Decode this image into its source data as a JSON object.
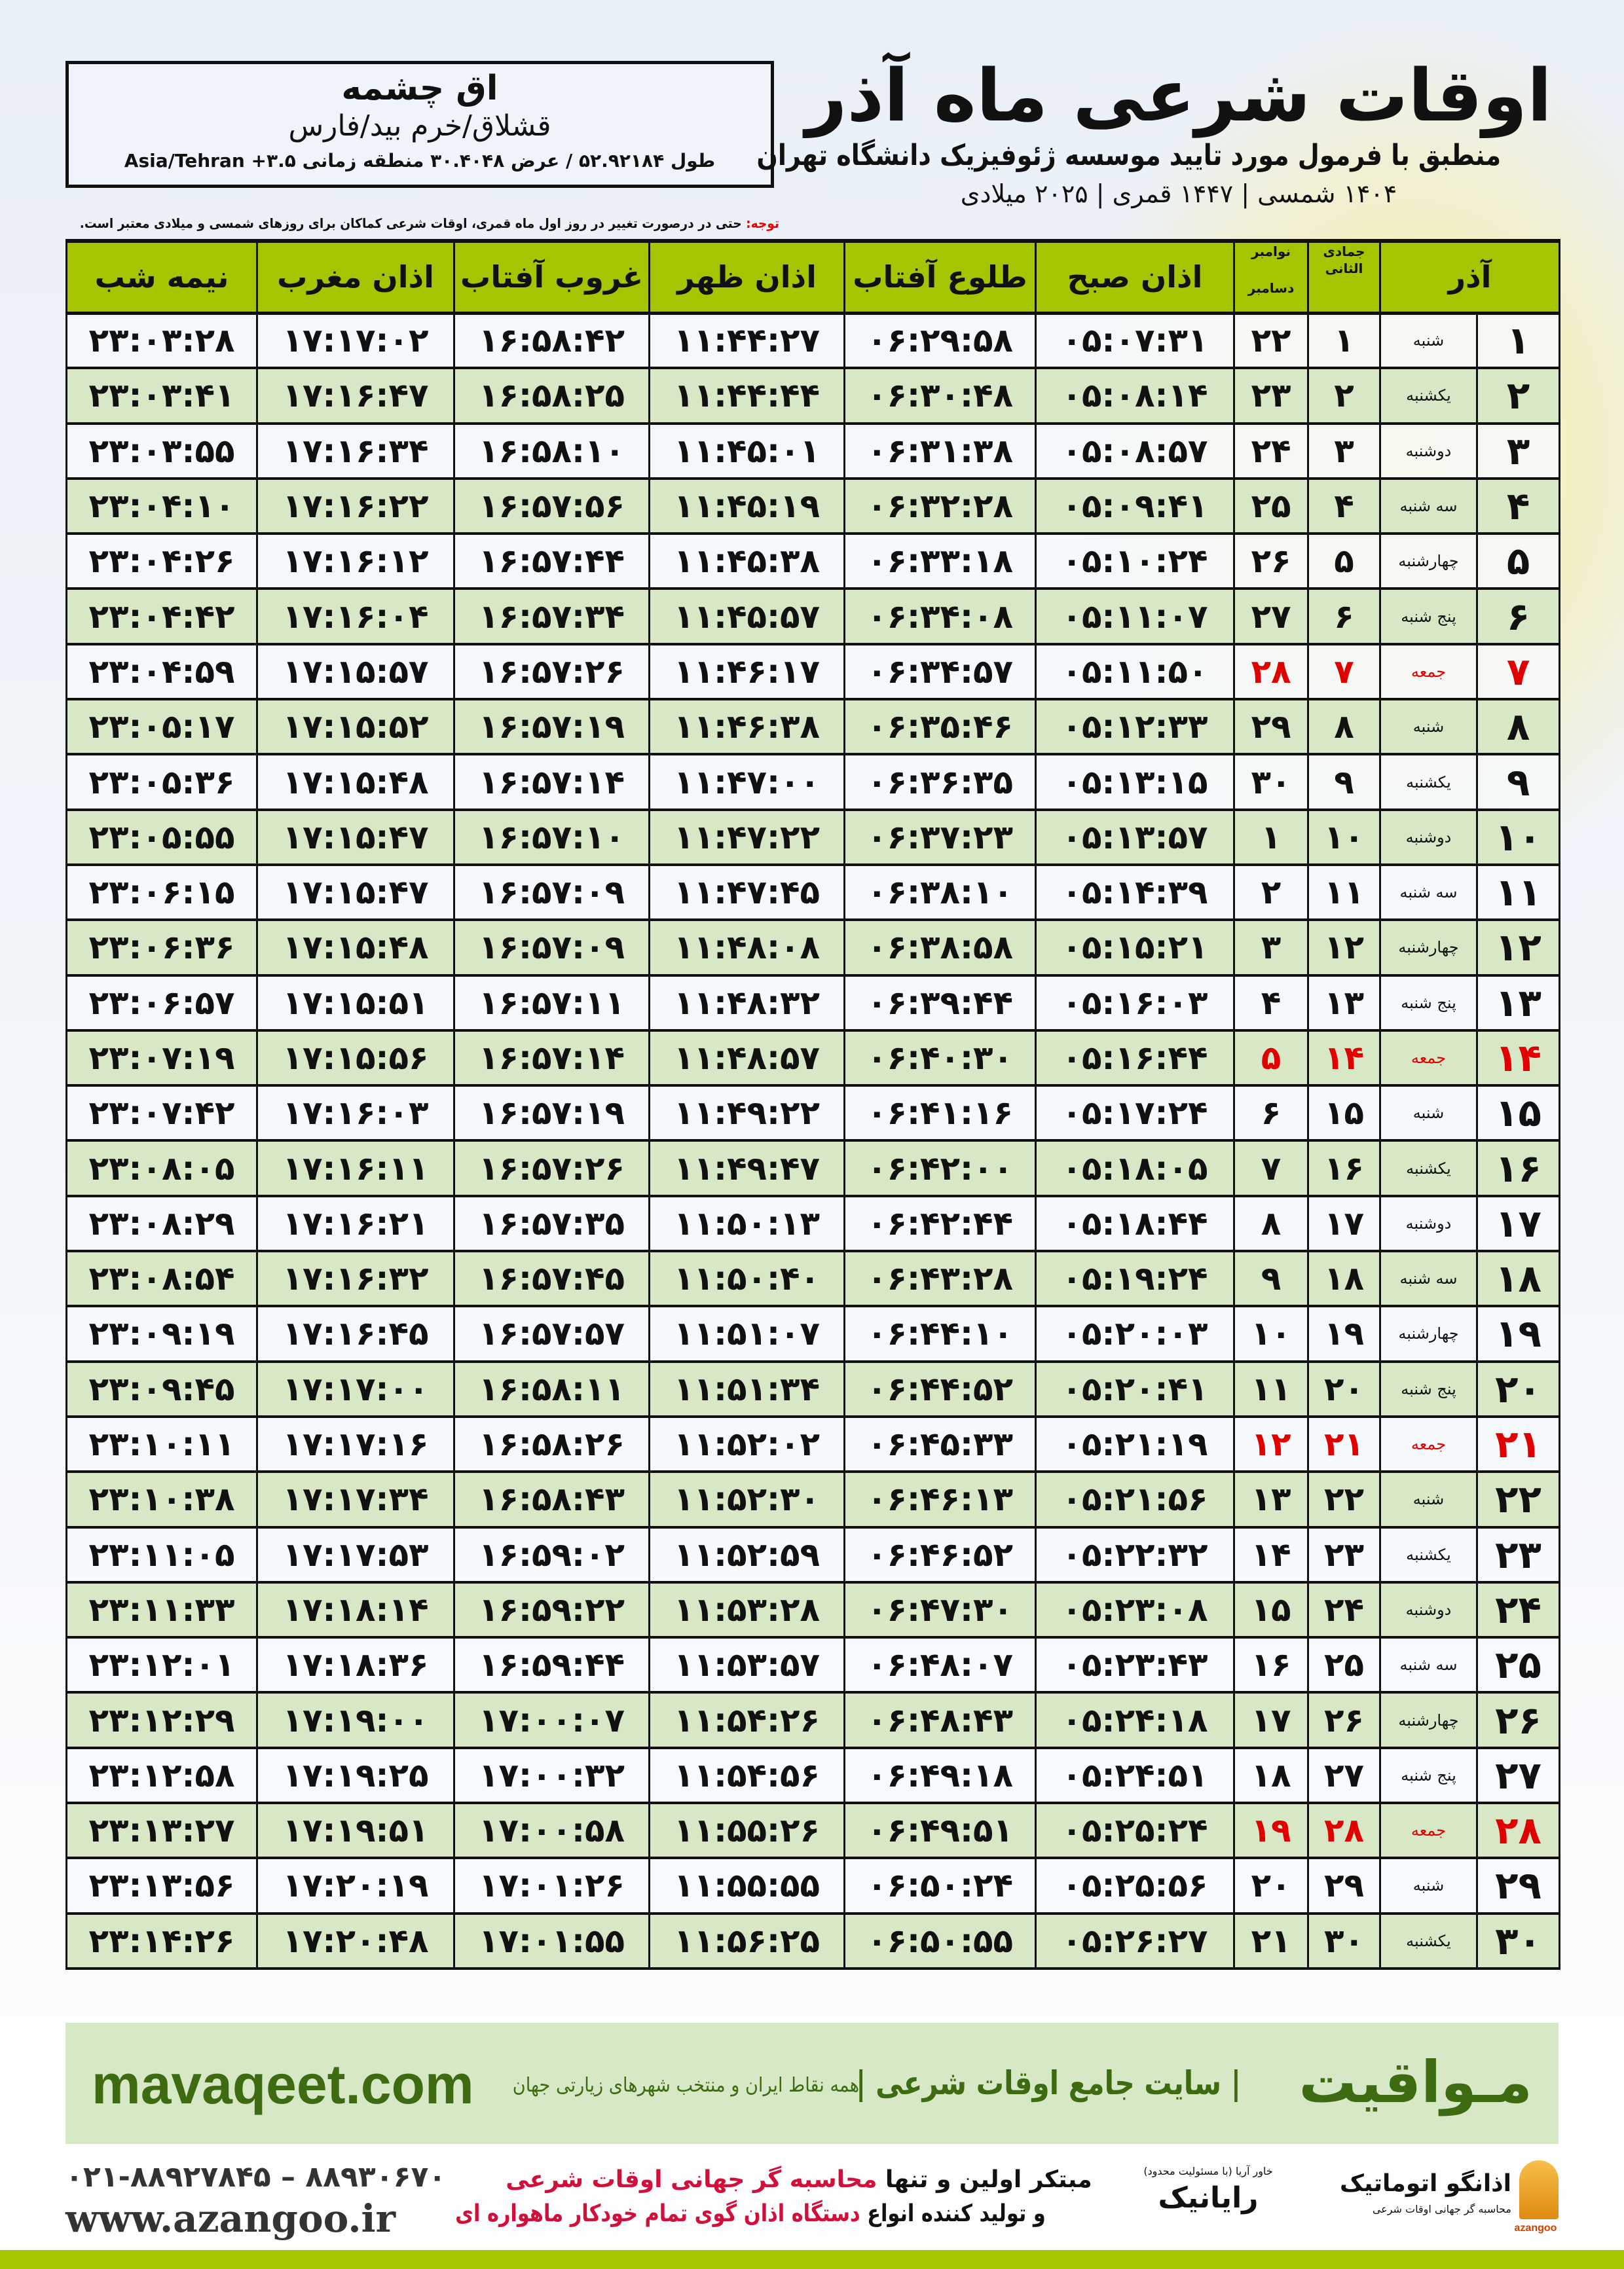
{
  "location": {
    "name": "اق چشمه",
    "region": "قشلاق/خرم بید/فارس",
    "coords": "طول ۵۲.۹۲۱۸۴ / عرض ۳۰.۴۰۴۸ منطقه زمانی Asia/Tehran +۳.۵"
  },
  "header": {
    "title": "اوقات شرعی ماه آذر",
    "subtitle": "منطبق با فرمول مورد تایید موسسه ژئوفیزیک دانشگاه تهران",
    "dates": "۱۴۰۴ شمسی | ۱۴۴۷ قمری | ۲۰۲۵ میلادی"
  },
  "note": {
    "label": "توجه:",
    "text": " حتی در درصورت تغییر در روز اول ماه قمری، اوقات شرعی کماکان برای روزهای شمسی و میلادی معتبر است."
  },
  "table": {
    "headers": {
      "month": "آذر",
      "hijri": "جمادی الثانی",
      "gregorian_top": "نوامبر",
      "gregorian_bottom": "دسامبر",
      "fajr": "اذان صبح",
      "sunrise": "طلوع آفتاب",
      "dhuhr": "اذان ظهر",
      "sunset": "غروب آفتاب",
      "maghrib": "اذان مغرب",
      "midnight": "نیمه شب"
    },
    "highlight_color": "#e00000",
    "rows": [
      [
        "۱",
        "شنبه",
        "۱",
        "۲۲",
        "۰۵:۰۷:۳۱",
        "۰۶:۲۹:۵۸",
        "۱۱:۴۴:۲۷",
        "۱۶:۵۸:۴۲",
        "۱۷:۱۷:۰۲",
        "۲۳:۰۳:۲۸"
      ],
      [
        "۲",
        "یکشنبه",
        "۲",
        "۲۳",
        "۰۵:۰۸:۱۴",
        "۰۶:۳۰:۴۸",
        "۱۱:۴۴:۴۴",
        "۱۶:۵۸:۲۵",
        "۱۷:۱۶:۴۷",
        "۲۳:۰۳:۴۱"
      ],
      [
        "۳",
        "دوشنبه",
        "۳",
        "۲۴",
        "۰۵:۰۸:۵۷",
        "۰۶:۳۱:۳۸",
        "۱۱:۴۵:۰۱",
        "۱۶:۵۸:۱۰",
        "۱۷:۱۶:۳۴",
        "۲۳:۰۳:۵۵"
      ],
      [
        "۴",
        "سه شنبه",
        "۴",
        "۲۵",
        "۰۵:۰۹:۴۱",
        "۰۶:۳۲:۲۸",
        "۱۱:۴۵:۱۹",
        "۱۶:۵۷:۵۶",
        "۱۷:۱۶:۲۲",
        "۲۳:۰۴:۱۰"
      ],
      [
        "۵",
        "چهارشنبه",
        "۵",
        "۲۶",
        "۰۵:۱۰:۲۴",
        "۰۶:۳۳:۱۸",
        "۱۱:۴۵:۳۸",
        "۱۶:۵۷:۴۴",
        "۱۷:۱۶:۱۲",
        "۲۳:۰۴:۲۶"
      ],
      [
        "۶",
        "پنج شنبه",
        "۶",
        "۲۷",
        "۰۵:۱۱:۰۷",
        "۰۶:۳۴:۰۸",
        "۱۱:۴۵:۵۷",
        "۱۶:۵۷:۳۴",
        "۱۷:۱۶:۰۴",
        "۲۳:۰۴:۴۲"
      ],
      [
        "۷",
        "جمعه",
        "۷",
        "۲۸",
        "۰۵:۱۱:۵۰",
        "۰۶:۳۴:۵۷",
        "۱۱:۴۶:۱۷",
        "۱۶:۵۷:۲۶",
        "۱۷:۱۵:۵۷",
        "۲۳:۰۴:۵۹"
      ],
      [
        "۸",
        "شنبه",
        "۸",
        "۲۹",
        "۰۵:۱۲:۳۳",
        "۰۶:۳۵:۴۶",
        "۱۱:۴۶:۳۸",
        "۱۶:۵۷:۱۹",
        "۱۷:۱۵:۵۲",
        "۲۳:۰۵:۱۷"
      ],
      [
        "۹",
        "یکشنبه",
        "۹",
        "۳۰",
        "۰۵:۱۳:۱۵",
        "۰۶:۳۶:۳۵",
        "۱۱:۴۷:۰۰",
        "۱۶:۵۷:۱۴",
        "۱۷:۱۵:۴۸",
        "۲۳:۰۵:۳۶"
      ],
      [
        "۱۰",
        "دوشنبه",
        "۱۰",
        "۱",
        "۰۵:۱۳:۵۷",
        "۰۶:۳۷:۲۳",
        "۱۱:۴۷:۲۲",
        "۱۶:۵۷:۱۰",
        "۱۷:۱۵:۴۷",
        "۲۳:۰۵:۵۵"
      ],
      [
        "۱۱",
        "سه شنبه",
        "۱۱",
        "۲",
        "۰۵:۱۴:۳۹",
        "۰۶:۳۸:۱۰",
        "۱۱:۴۷:۴۵",
        "۱۶:۵۷:۰۹",
        "۱۷:۱۵:۴۷",
        "۲۳:۰۶:۱۵"
      ],
      [
        "۱۲",
        "چهارشنبه",
        "۱۲",
        "۳",
        "۰۵:۱۵:۲۱",
        "۰۶:۳۸:۵۸",
        "۱۱:۴۸:۰۸",
        "۱۶:۵۷:۰۹",
        "۱۷:۱۵:۴۸",
        "۲۳:۰۶:۳۶"
      ],
      [
        "۱۳",
        "پنج شنبه",
        "۱۳",
        "۴",
        "۰۵:۱۶:۰۳",
        "۰۶:۳۹:۴۴",
        "۱۱:۴۸:۳۲",
        "۱۶:۵۷:۱۱",
        "۱۷:۱۵:۵۱",
        "۲۳:۰۶:۵۷"
      ],
      [
        "۱۴",
        "جمعه",
        "۱۴",
        "۵",
        "۰۵:۱۶:۴۴",
        "۰۶:۴۰:۳۰",
        "۱۱:۴۸:۵۷",
        "۱۶:۵۷:۱۴",
        "۱۷:۱۵:۵۶",
        "۲۳:۰۷:۱۹"
      ],
      [
        "۱۵",
        "شنبه",
        "۱۵",
        "۶",
        "۰۵:۱۷:۲۴",
        "۰۶:۴۱:۱۶",
        "۱۱:۴۹:۲۲",
        "۱۶:۵۷:۱۹",
        "۱۷:۱۶:۰۳",
        "۲۳:۰۷:۴۲"
      ],
      [
        "۱۶",
        "یکشنبه",
        "۱۶",
        "۷",
        "۰۵:۱۸:۰۵",
        "۰۶:۴۲:۰۰",
        "۱۱:۴۹:۴۷",
        "۱۶:۵۷:۲۶",
        "۱۷:۱۶:۱۱",
        "۲۳:۰۸:۰۵"
      ],
      [
        "۱۷",
        "دوشنبه",
        "۱۷",
        "۸",
        "۰۵:۱۸:۴۴",
        "۰۶:۴۲:۴۴",
        "۱۱:۵۰:۱۳",
        "۱۶:۵۷:۳۵",
        "۱۷:۱۶:۲۱",
        "۲۳:۰۸:۲۹"
      ],
      [
        "۱۸",
        "سه شنبه",
        "۱۸",
        "۹",
        "۰۵:۱۹:۲۴",
        "۰۶:۴۳:۲۸",
        "۱۱:۵۰:۴۰",
        "۱۶:۵۷:۴۵",
        "۱۷:۱۶:۳۲",
        "۲۳:۰۸:۵۴"
      ],
      [
        "۱۹",
        "چهارشنبه",
        "۱۹",
        "۱۰",
        "۰۵:۲۰:۰۳",
        "۰۶:۴۴:۱۰",
        "۱۱:۵۱:۰۷",
        "۱۶:۵۷:۵۷",
        "۱۷:۱۶:۴۵",
        "۲۳:۰۹:۱۹"
      ],
      [
        "۲۰",
        "پنج شنبه",
        "۲۰",
        "۱۱",
        "۰۵:۲۰:۴۱",
        "۰۶:۴۴:۵۲",
        "۱۱:۵۱:۳۴",
        "۱۶:۵۸:۱۱",
        "۱۷:۱۷:۰۰",
        "۲۳:۰۹:۴۵"
      ],
      [
        "۲۱",
        "جمعه",
        "۲۱",
        "۱۲",
        "۰۵:۲۱:۱۹",
        "۰۶:۴۵:۳۳",
        "۱۱:۵۲:۰۲",
        "۱۶:۵۸:۲۶",
        "۱۷:۱۷:۱۶",
        "۲۳:۱۰:۱۱"
      ],
      [
        "۲۲",
        "شنبه",
        "۲۲",
        "۱۳",
        "۰۵:۲۱:۵۶",
        "۰۶:۴۶:۱۳",
        "۱۱:۵۲:۳۰",
        "۱۶:۵۸:۴۳",
        "۱۷:۱۷:۳۴",
        "۲۳:۱۰:۳۸"
      ],
      [
        "۲۳",
        "یکشنبه",
        "۲۳",
        "۱۴",
        "۰۵:۲۲:۳۲",
        "۰۶:۴۶:۵۲",
        "۱۱:۵۲:۵۹",
        "۱۶:۵۹:۰۲",
        "۱۷:۱۷:۵۳",
        "۲۳:۱۱:۰۵"
      ],
      [
        "۲۴",
        "دوشنبه",
        "۲۴",
        "۱۵",
        "۰۵:۲۳:۰۸",
        "۰۶:۴۷:۳۰",
        "۱۱:۵۳:۲۸",
        "۱۶:۵۹:۲۲",
        "۱۷:۱۸:۱۴",
        "۲۳:۱۱:۳۳"
      ],
      [
        "۲۵",
        "سه شنبه",
        "۲۵",
        "۱۶",
        "۰۵:۲۳:۴۳",
        "۰۶:۴۸:۰۷",
        "۱۱:۵۳:۵۷",
        "۱۶:۵۹:۴۴",
        "۱۷:۱۸:۳۶",
        "۲۳:۱۲:۰۱"
      ],
      [
        "۲۶",
        "چهارشنبه",
        "۲۶",
        "۱۷",
        "۰۵:۲۴:۱۸",
        "۰۶:۴۸:۴۳",
        "۱۱:۵۴:۲۶",
        "۱۷:۰۰:۰۷",
        "۱۷:۱۹:۰۰",
        "۲۳:۱۲:۲۹"
      ],
      [
        "۲۷",
        "پنج شنبه",
        "۲۷",
        "۱۸",
        "۰۵:۲۴:۵۱",
        "۰۶:۴۹:۱۸",
        "۱۱:۵۴:۵۶",
        "۱۷:۰۰:۳۲",
        "۱۷:۱۹:۲۵",
        "۲۳:۱۲:۵۸"
      ],
      [
        "۲۸",
        "جمعه",
        "۲۸",
        "۱۹",
        "۰۵:۲۵:۲۴",
        "۰۶:۴۹:۵۱",
        "۱۱:۵۵:۲۶",
        "۱۷:۰۰:۵۸",
        "۱۷:۱۹:۵۱",
        "۲۳:۱۳:۲۷"
      ],
      [
        "۲۹",
        "شنبه",
        "۲۹",
        "۲۰",
        "۰۵:۲۵:۵۶",
        "۰۶:۵۰:۲۴",
        "۱۱:۵۵:۵۵",
        "۱۷:۰۱:۲۶",
        "۱۷:۲۰:۱۹",
        "۲۳:۱۳:۵۶"
      ],
      [
        "۳۰",
        "یکشنبه",
        "۳۰",
        "۲۱",
        "۰۵:۲۶:۲۷",
        "۰۶:۵۰:۵۵",
        "۱۱:۵۶:۲۵",
        "۱۷:۰۱:۵۵",
        "۱۷:۲۰:۴۸",
        "۲۳:۱۴:۲۶"
      ]
    ]
  },
  "banner": {
    "brand": "مـواقیت",
    "desc": "| سایت جامع اوقات شرعی |",
    "tag": "همه نقاط ایران و منتخب شهرهای زیارتی جهان",
    "site": "mavaqeet.com"
  },
  "footer": {
    "phone": "۰۲۱-۸۸۹۲۷۸۴۵ – ۸۸۹۳۰۶۷۰",
    "web": "www.azangoo.ir",
    "line1_a": "مبتکر اولین و تنها ",
    "line1_b": "محاسبه گر جهانی اوقات شرعی",
    "line2_a": "و تولید کننده انواع ",
    "line2_b": "دستگاه اذان گوی تمام خودکار ماهواره ای",
    "logo1": "رایانیک",
    "logo1_small": "خاور آریا (با مسئولیت محدود)",
    "logo2": "اذانگو اتوماتیک",
    "logo2_sub": "محاسبه گر جهانی اوقات شرعی",
    "logo2_latin": "azangoo"
  }
}
